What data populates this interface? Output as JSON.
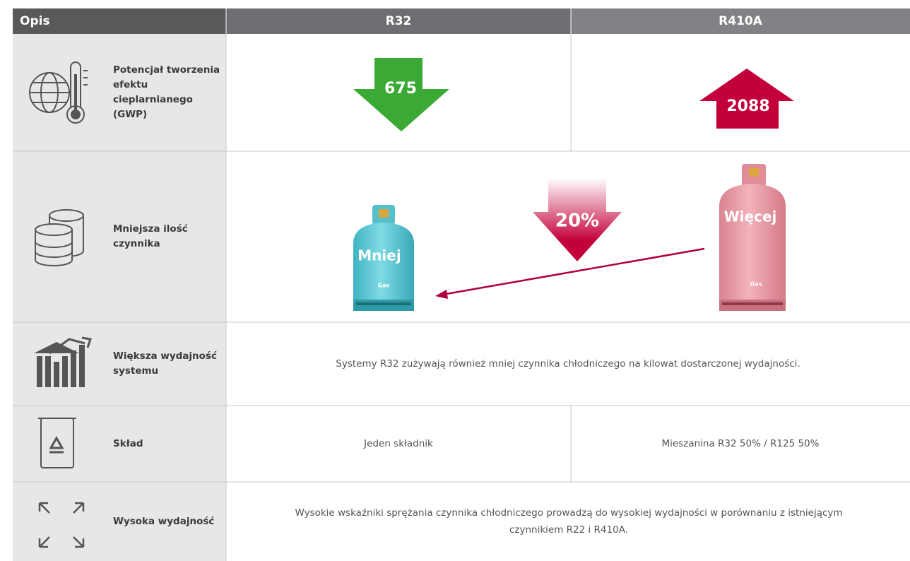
{
  "header": {
    "description": "Opis",
    "r32": "R32",
    "r410a": "R410A"
  },
  "rows": [
    {
      "label": "Potencjał tworzenia efektu cieplarnianego (GWP)",
      "r32": "675",
      "r410a": "2088"
    },
    {
      "label": "Mniejsza ilość czynnika",
      "reduction": "20%",
      "r32_cylinder": "Mniej",
      "r32_cylinder_tag": "Gas",
      "r410a_cylinder": "Więcej",
      "r410a_cylinder_tag": "Gas"
    },
    {
      "label": "Większa wydajność systemu",
      "text": "Systemy R32 zużywają również mniej czynnika chłodniczego na kilowat dostarczonej wydajności."
    },
    {
      "label": "Skład",
      "r32": "Jeden składnik",
      "r410a": "Mieszanina R32 50% / R125 50%"
    },
    {
      "label": "Wysoka wydajność",
      "text": "Wysokie wskaźniki sprężania czynnika chłodniczego prowadzą do wysokiej wydajności w porównaniu z istniejącym czynnikiem R22 i R410A."
    }
  ]
}
